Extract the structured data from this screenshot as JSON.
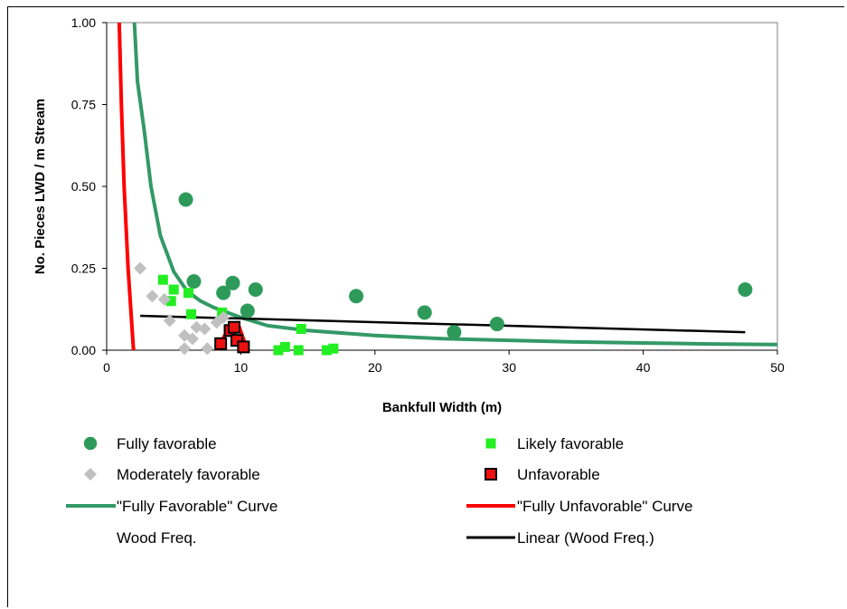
{
  "chart_data": {
    "type": "scatter",
    "xlabel": "Bankfull Width (m)",
    "ylabel": "No. Pieces LWD / m Stream",
    "xlim": [
      0,
      50
    ],
    "ylim": [
      0,
      1
    ],
    "x_ticks": [
      "0",
      "10",
      "20",
      "30",
      "40",
      "50"
    ],
    "y_ticks": [
      "0.00",
      "0.25",
      "0.50",
      "0.75",
      "1.00"
    ],
    "grid": false,
    "legend_position": "bottom",
    "series": [
      {
        "name": "Fully favorable",
        "marker": "circle",
        "color": "#2e9a5a",
        "points": [
          [
            5.9,
            0.46
          ],
          [
            6.5,
            0.21
          ],
          [
            8.7,
            0.175
          ],
          [
            9.4,
            0.205
          ],
          [
            10.5,
            0.12
          ],
          [
            11.1,
            0.185
          ],
          [
            18.6,
            0.165
          ],
          [
            23.7,
            0.115
          ],
          [
            25.9,
            0.055
          ],
          [
            29.1,
            0.08
          ],
          [
            47.6,
            0.185
          ]
        ]
      },
      {
        "name": "Likely favorable",
        "marker": "square",
        "color": "#22ee22",
        "points": [
          [
            4.2,
            0.215
          ],
          [
            5.0,
            0.185
          ],
          [
            4.8,
            0.15
          ],
          [
            6.1,
            0.175
          ],
          [
            6.3,
            0.11
          ],
          [
            8.6,
            0.115
          ],
          [
            12.8,
            0.0
          ],
          [
            13.3,
            0.01
          ],
          [
            14.3,
            0.0
          ],
          [
            14.5,
            0.065
          ],
          [
            16.4,
            0.0
          ],
          [
            16.9,
            0.005
          ]
        ]
      },
      {
        "name": "Moderately favorable",
        "marker": "diamond",
        "color": "#c0c0c0",
        "points": [
          [
            2.5,
            0.25
          ],
          [
            3.4,
            0.165
          ],
          [
            4.3,
            0.155
          ],
          [
            4.7,
            0.09
          ],
          [
            5.8,
            0.045
          ],
          [
            5.8,
            0.005
          ],
          [
            6.4,
            0.035
          ],
          [
            6.7,
            0.07
          ],
          [
            7.3,
            0.065
          ],
          [
            7.5,
            0.005
          ],
          [
            8.2,
            0.085
          ],
          [
            8.7,
            0.1
          ]
        ]
      },
      {
        "name": "Unfavorable",
        "marker": "square-outlined",
        "color": "#ee1111",
        "points": [
          [
            8.5,
            0.02
          ],
          [
            9.2,
            0.06
          ],
          [
            9.5,
            0.07
          ],
          [
            9.7,
            0.03
          ],
          [
            10.2,
            0.01
          ]
        ]
      },
      {
        "name": "\"Fully Favorable\" Curve",
        "type": "line",
        "color": "#339966",
        "points": [
          [
            2,
            1.05
          ],
          [
            2.3,
            0.82
          ],
          [
            2.8,
            0.67
          ],
          [
            3.3,
            0.5
          ],
          [
            4.0,
            0.35
          ],
          [
            5.0,
            0.24
          ],
          [
            6.0,
            0.18
          ],
          [
            7.0,
            0.15
          ],
          [
            8.0,
            0.13
          ],
          [
            10.0,
            0.1
          ],
          [
            12.0,
            0.075
          ],
          [
            15.0,
            0.06
          ],
          [
            20.0,
            0.045
          ],
          [
            25.0,
            0.035
          ],
          [
            30.0,
            0.03
          ],
          [
            35.0,
            0.025
          ],
          [
            40.0,
            0.022
          ],
          [
            45.0,
            0.019
          ],
          [
            50.0,
            0.017
          ]
        ]
      },
      {
        "name": "\"Fully Unfavorable\" Curve",
        "type": "line",
        "color": "#ff0000",
        "segments": [
          [
            [
              0.9,
              1.05
            ],
            [
              1.1,
              0.75
            ],
            [
              1.3,
              0.5
            ],
            [
              1.6,
              0.25
            ],
            [
              2.0,
              0.0
            ]
          ],
          [
            [
              8.2,
              0.0
            ],
            [
              9.0,
              0.06
            ],
            [
              9.8,
              0.08
            ],
            [
              10.5,
              0.0
            ]
          ]
        ]
      },
      {
        "name": "Wood Freq.",
        "type": "none"
      },
      {
        "name": "Linear (Wood Freq.)",
        "type": "line",
        "color": "#000000",
        "points": [
          [
            2.5,
            0.105
          ],
          [
            47.6,
            0.055
          ]
        ]
      }
    ]
  },
  "legend": {
    "items": [
      {
        "label": "Fully favorable",
        "key": "circle"
      },
      {
        "label": "Likely favorable",
        "key": "square"
      },
      {
        "label": "Moderately favorable",
        "key": "diamond"
      },
      {
        "label": "Unfavorable",
        "key": "square-outlined"
      },
      {
        "label": "\"Fully Favorable\" Curve",
        "key": "green-line"
      },
      {
        "label": "\"Fully Unfavorable\" Curve",
        "key": "red-line"
      },
      {
        "label": "Wood Freq.",
        "key": "none"
      },
      {
        "label": "Linear (Wood Freq.)",
        "key": "black-line"
      }
    ]
  }
}
